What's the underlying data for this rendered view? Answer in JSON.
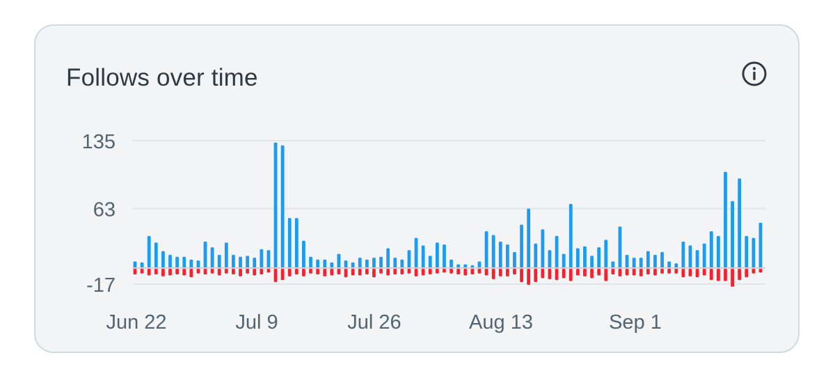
{
  "card": {
    "title": "Follows over time",
    "info_icon": "info-circle-icon"
  },
  "chart_data": {
    "type": "bar",
    "title": "Follows over time",
    "x_tick_labels": [
      "Jun 22",
      "Jul 9",
      "Jul 26",
      "Aug 13",
      "Sep 1"
    ],
    "y_tick_labels": [
      "135",
      "63",
      "-17"
    ],
    "y_ticks": [
      135,
      63,
      -17
    ],
    "ylim": [
      -17,
      135
    ],
    "grid": true,
    "colors": {
      "follows": "#1d9bf0",
      "unfollows": "#f4212e",
      "grid": "#dfe6ea",
      "baseline": "#c8d1d7"
    },
    "series": [
      {
        "values": [
          7,
          6,
          34,
          27,
          18,
          14,
          12,
          12,
          9,
          8,
          28,
          22,
          14,
          27,
          14,
          12,
          13,
          11,
          20,
          19,
          133,
          130,
          53,
          53,
          29,
          12,
          9,
          9,
          6,
          15,
          8,
          6,
          11,
          9,
          11,
          12,
          21,
          11,
          9,
          19,
          32,
          24,
          13,
          27,
          25,
          9,
          4,
          4,
          3,
          7,
          39,
          35,
          28,
          25,
          17,
          46,
          63,
          26,
          41,
          19,
          34,
          15,
          68,
          21,
          23,
          13,
          22,
          30,
          7,
          44,
          14,
          11,
          11,
          18,
          14,
          17,
          7,
          5,
          28,
          24,
          19,
          26,
          39,
          34,
          102,
          71,
          95,
          34,
          32,
          48
        ]
      },
      {
        "values": [
          -6,
          -5,
          -7,
          -6,
          -8,
          -7,
          -6,
          -7,
          -9,
          -5,
          -6,
          -5,
          -7,
          -5,
          -6,
          -8,
          -5,
          -7,
          -6,
          -4,
          -14,
          -12,
          -8,
          -6,
          -8,
          -5,
          -6,
          -8,
          -7,
          -6,
          -9,
          -7,
          -7,
          -6,
          -9,
          -5,
          -7,
          -6,
          -6,
          -5,
          -8,
          -7,
          -6,
          -5,
          -4,
          -5,
          -6,
          -7,
          -6,
          -5,
          -7,
          -11,
          -8,
          -8,
          -6,
          -14,
          -17,
          -14,
          -10,
          -11,
          -12,
          -10,
          -13,
          -7,
          -8,
          -10,
          -7,
          -13,
          -6,
          -8,
          -7,
          -7,
          -8,
          -6,
          -7,
          -5,
          -5,
          -5,
          -9,
          -8,
          -9,
          -7,
          -12,
          -13,
          -13,
          -19,
          -12,
          -9,
          -5,
          -4
        ]
      }
    ]
  }
}
